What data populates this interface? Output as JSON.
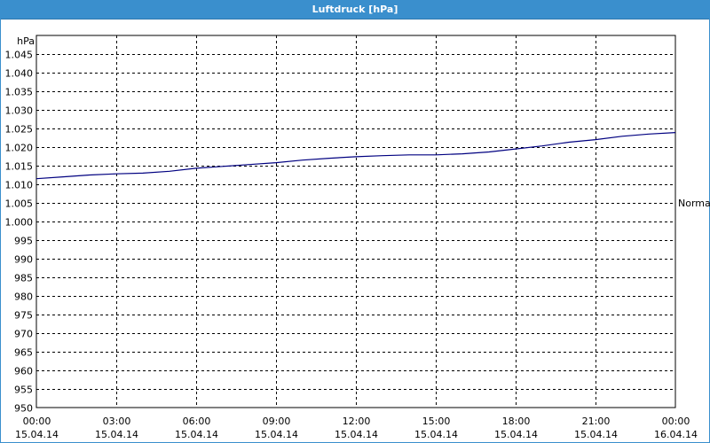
{
  "window": {
    "title": "Luftdruck [hPa]"
  },
  "chart_data": {
    "type": "line",
    "title": "Luftdruck [hPa]",
    "ylabel": "hPa",
    "ylim": [
      950,
      1050
    ],
    "y_ticks": [
      {
        "value": 950,
        "label": "950"
      },
      {
        "value": 955,
        "label": "955"
      },
      {
        "value": 960,
        "label": "960"
      },
      {
        "value": 965,
        "label": "965"
      },
      {
        "value": 970,
        "label": "970"
      },
      {
        "value": 975,
        "label": "975"
      },
      {
        "value": 980,
        "label": "980"
      },
      {
        "value": 985,
        "label": "985"
      },
      {
        "value": 990,
        "label": "990"
      },
      {
        "value": 995,
        "label": "995"
      },
      {
        "value": 1000,
        "label": "1.000"
      },
      {
        "value": 1005,
        "label": "1.005"
      },
      {
        "value": 1010,
        "label": "1.010"
      },
      {
        "value": 1015,
        "label": "1.015"
      },
      {
        "value": 1020,
        "label": "1.020"
      },
      {
        "value": 1025,
        "label": "1.025"
      },
      {
        "value": 1030,
        "label": "1.030"
      },
      {
        "value": 1035,
        "label": "1.035"
      },
      {
        "value": 1040,
        "label": "1.040"
      },
      {
        "value": 1045,
        "label": "1.045"
      }
    ],
    "xlim": [
      "15.04.14 00:00",
      "16.04.14 00:00"
    ],
    "x_ticks": [
      {
        "time": "00:00",
        "date": "15.04.14"
      },
      {
        "time": "03:00",
        "date": "15.04.14"
      },
      {
        "time": "06:00",
        "date": "15.04.14"
      },
      {
        "time": "09:00",
        "date": "15.04.14"
      },
      {
        "time": "12:00",
        "date": "15.04.14"
      },
      {
        "time": "15:00",
        "date": "15.04.14"
      },
      {
        "time": "18:00",
        "date": "15.04.14"
      },
      {
        "time": "21:00",
        "date": "15.04.14"
      },
      {
        "time": "00:00",
        "date": "16.04.14"
      }
    ],
    "grid": true,
    "reference_label": {
      "text": "Normal",
      "value": 1005
    },
    "series": [
      {
        "color": "#000080",
        "points": [
          {
            "x": "15.04.14 00:00",
            "y": 1011.5
          },
          {
            "x": "15.04.14 01:00",
            "y": 1012.0
          },
          {
            "x": "15.04.14 02:00",
            "y": 1012.5
          },
          {
            "x": "15.04.14 03:00",
            "y": 1012.8
          },
          {
            "x": "15.04.14 04:00",
            "y": 1013.0
          },
          {
            "x": "15.04.14 05:00",
            "y": 1013.5
          },
          {
            "x": "15.04.14 06:00",
            "y": 1014.3
          },
          {
            "x": "15.04.14 07:00",
            "y": 1014.8
          },
          {
            "x": "15.04.14 08:00",
            "y": 1015.3
          },
          {
            "x": "15.04.14 09:00",
            "y": 1015.8
          },
          {
            "x": "15.04.14 10:00",
            "y": 1016.5
          },
          {
            "x": "15.04.14 11:00",
            "y": 1017.0
          },
          {
            "x": "15.04.14 12:00",
            "y": 1017.4
          },
          {
            "x": "15.04.14 13:00",
            "y": 1017.7
          },
          {
            "x": "15.04.14 14:00",
            "y": 1017.9
          },
          {
            "x": "15.04.14 15:00",
            "y": 1017.9
          },
          {
            "x": "15.04.14 16:00",
            "y": 1018.2
          },
          {
            "x": "15.04.14 17:00",
            "y": 1018.7
          },
          {
            "x": "15.04.14 18:00",
            "y": 1019.5
          },
          {
            "x": "15.04.14 19:00",
            "y": 1020.3
          },
          {
            "x": "15.04.14 20:00",
            "y": 1021.3
          },
          {
            "x": "15.04.14 21:00",
            "y": 1022.0
          },
          {
            "x": "15.04.14 22:00",
            "y": 1022.9
          },
          {
            "x": "15.04.14 23:00",
            "y": 1023.5
          },
          {
            "x": "16.04.14 00:00",
            "y": 1023.9
          }
        ]
      }
    ]
  }
}
